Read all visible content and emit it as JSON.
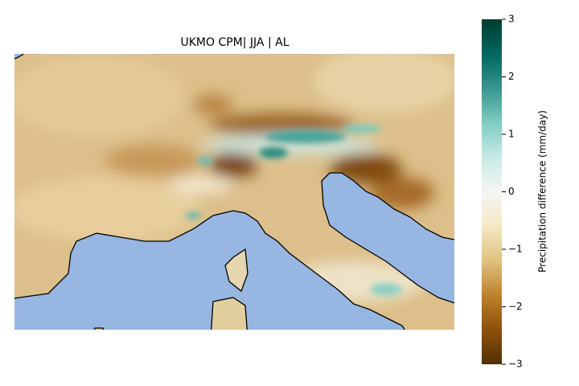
{
  "map": {
    "title": "UKMO CPM| JJA | AL",
    "colorbar": {
      "label": "Precipitation difference (mm/day)",
      "lim": [
        -3,
        3
      ],
      "ticks": [
        {
          "value": -3,
          "label": "−3"
        },
        {
          "value": -2,
          "label": "−2"
        },
        {
          "value": -1,
          "label": "−1"
        },
        0,
        1,
        2,
        3
      ],
      "colors": [
        "#543005",
        "#8c510a",
        "#bf812d",
        "#dfc27d",
        "#f6e8c3",
        "#f5f5f5",
        "#c7eae5",
        "#80cdc1",
        "#35978f",
        "#01665e",
        "#003c30"
      ]
    }
  }
}
